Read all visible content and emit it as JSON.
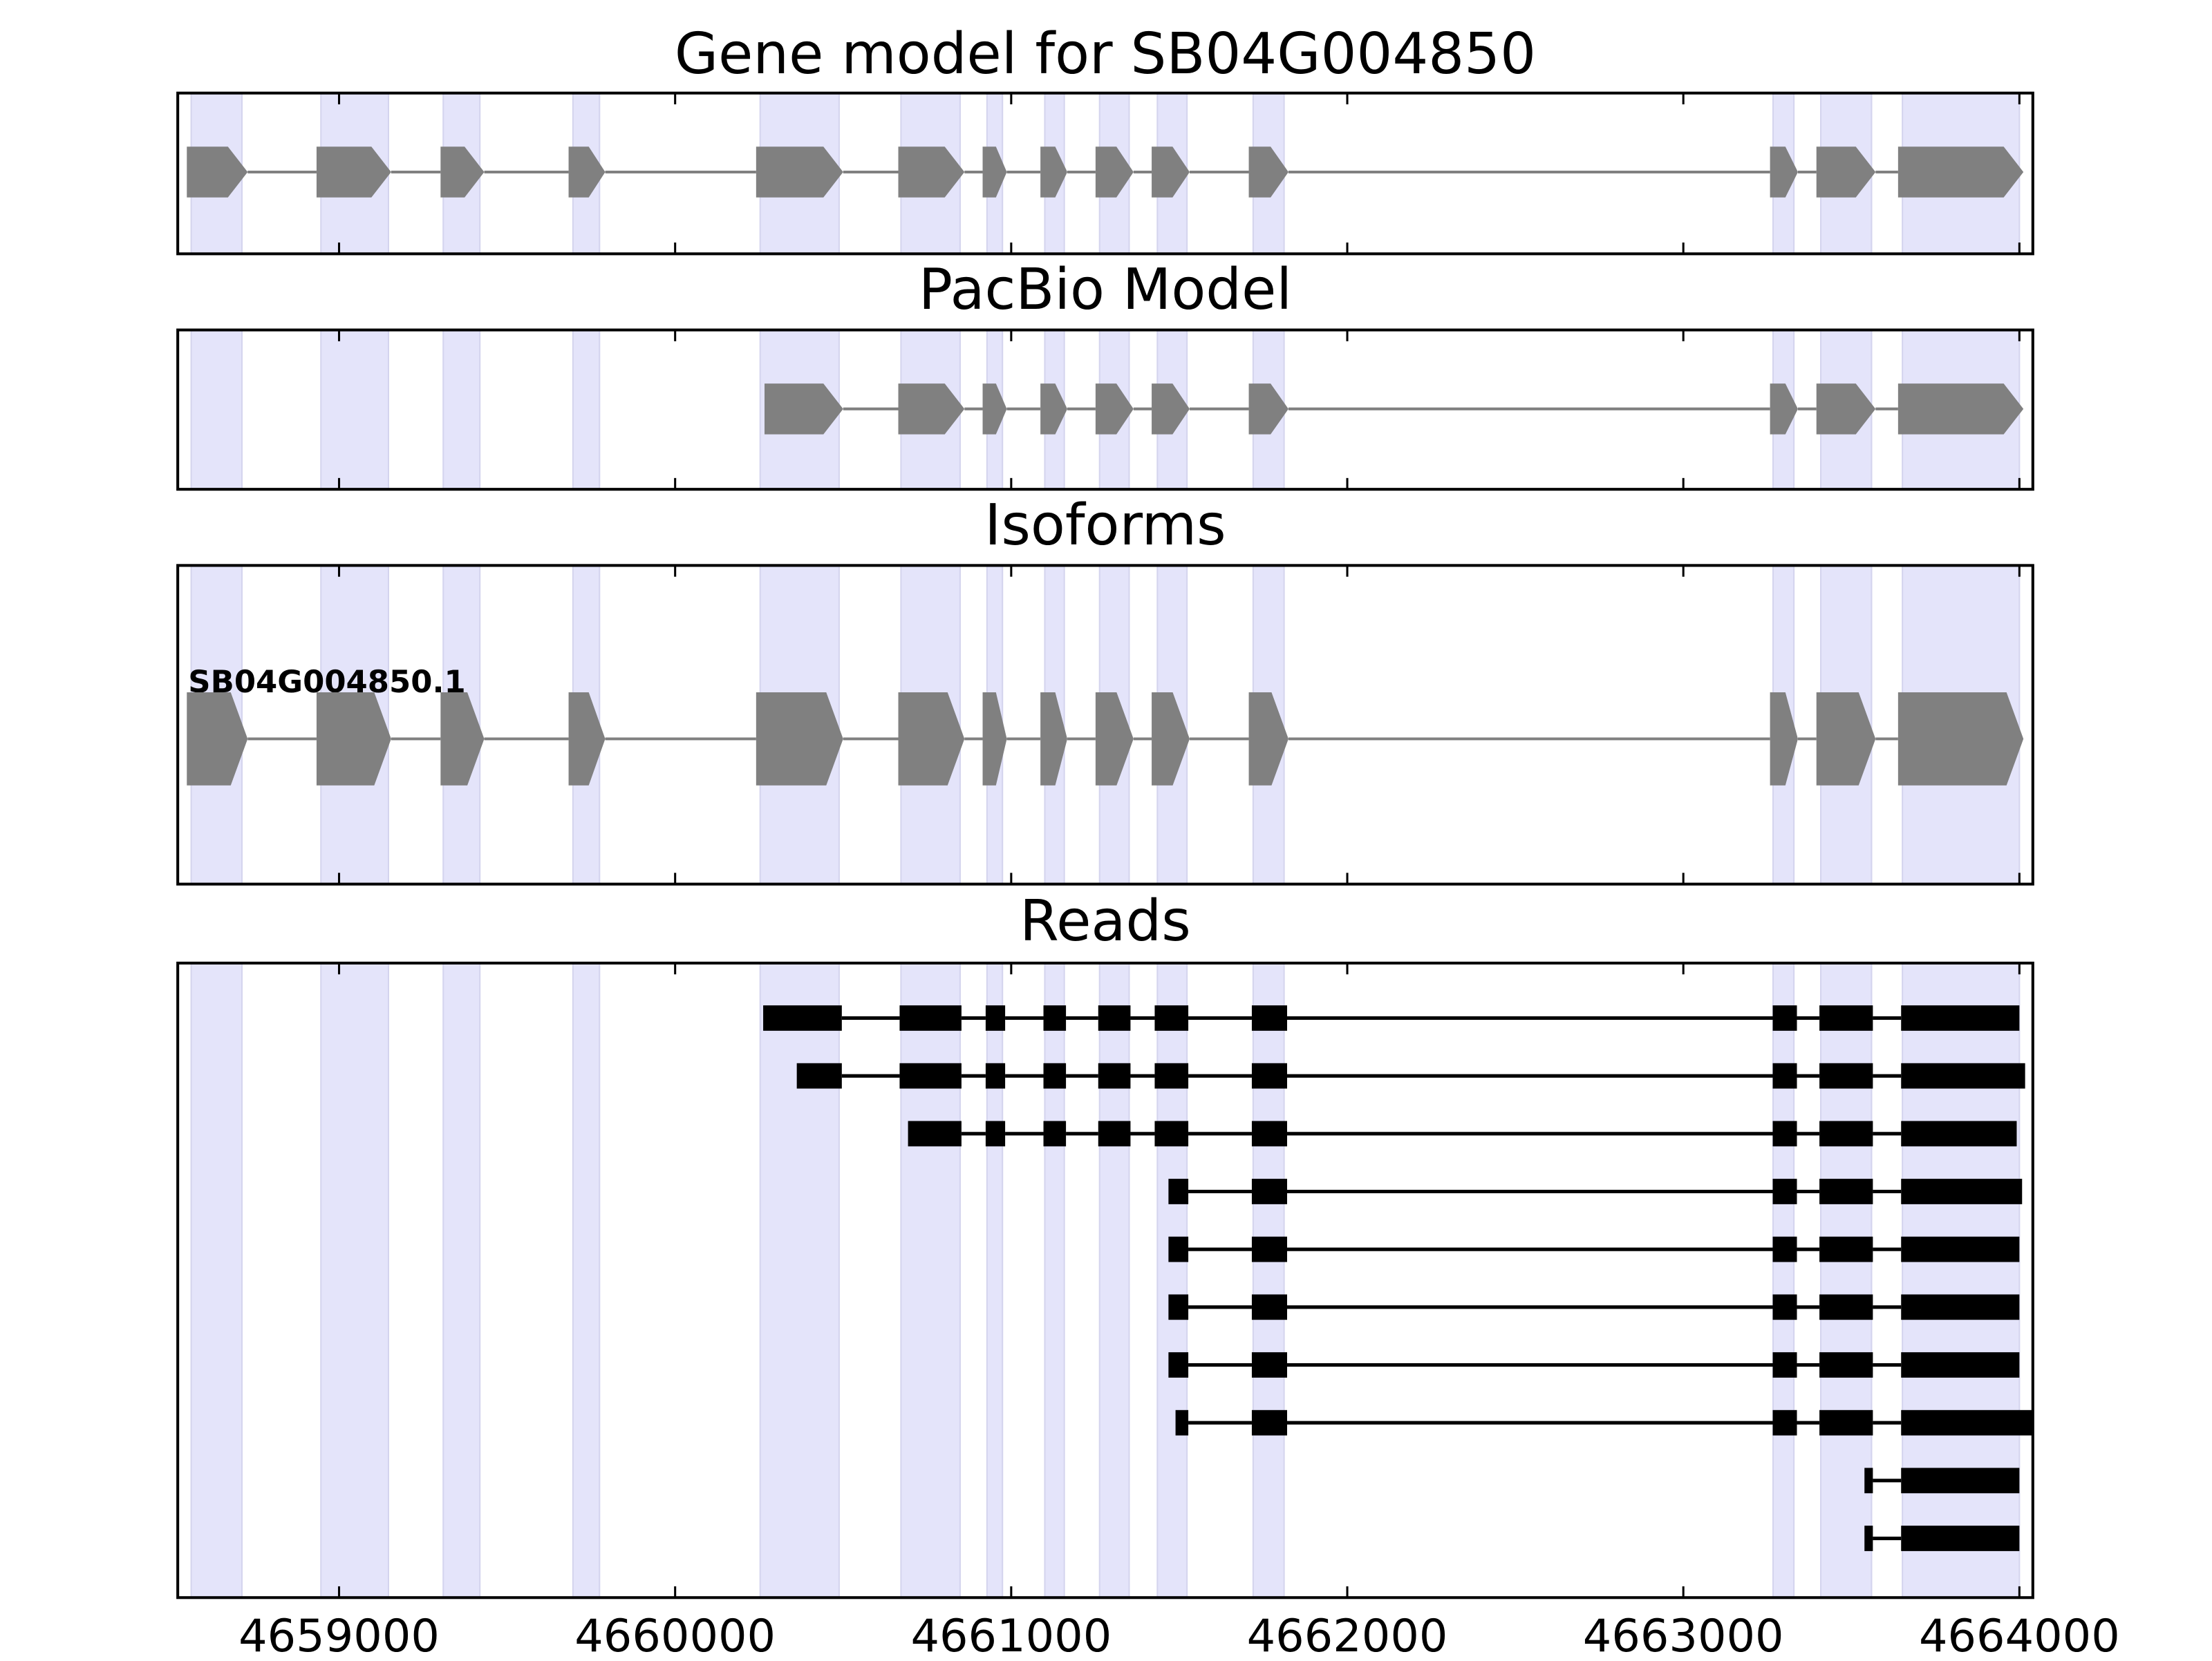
{
  "shared_x": {
    "xlim": [
      4658520,
      4664040
    ],
    "xticks": [
      4659000,
      4660000,
      4661000,
      4662000,
      4663000,
      4664000
    ],
    "highlight_color": "#e4e4fa",
    "highlight_regions": [
      [
        4658560,
        4658711
      ],
      [
        4658946,
        4659147
      ],
      [
        4659310,
        4659419
      ],
      [
        4659696,
        4659775
      ],
      [
        4660253,
        4660488
      ],
      [
        4660672,
        4660848
      ],
      [
        4660928,
        4660974
      ],
      [
        4661100,
        4661158
      ],
      [
        4661263,
        4661351
      ],
      [
        4661435,
        4661523
      ],
      [
        4661720,
        4661812
      ],
      [
        4663267,
        4663329
      ],
      [
        4663409,
        4663560
      ],
      [
        4663652,
        4664000
      ]
    ]
  },
  "chart_data": [
    {
      "type": "gene",
      "title": "Gene model for SB04G004850",
      "color": "#808080",
      "exons": [
        [
          4658547,
          4658728
        ],
        [
          4658933,
          4659155
        ],
        [
          4659302,
          4659432
        ],
        [
          4659683,
          4659792
        ],
        [
          4660241,
          4660500
        ],
        [
          4660664,
          4660861
        ],
        [
          4660915,
          4660987
        ],
        [
          4661087,
          4661167
        ],
        [
          4661251,
          4661364
        ],
        [
          4661418,
          4661531
        ],
        [
          4661707,
          4661825
        ],
        [
          4663258,
          4663341
        ],
        [
          4663396,
          4663572
        ],
        [
          4663639,
          4664012
        ]
      ]
    },
    {
      "type": "gene",
      "title": "PacBio Model",
      "color": "#808080",
      "exons": [
        [
          4660266,
          4660500
        ],
        [
          4660664,
          4660861
        ],
        [
          4660915,
          4660987
        ],
        [
          4661087,
          4661167
        ],
        [
          4661251,
          4661364
        ],
        [
          4661418,
          4661531
        ],
        [
          4661707,
          4661825
        ],
        [
          4663258,
          4663341
        ],
        [
          4663396,
          4663572
        ],
        [
          4663639,
          4664012
        ]
      ]
    },
    {
      "type": "isoforms",
      "title": "Isoforms",
      "color": "#808080",
      "isoforms": [
        {
          "name": "SB04G004850.1",
          "exons": [
            [
              4658547,
              4658728
            ],
            [
              4658933,
              4659155
            ],
            [
              4659302,
              4659432
            ],
            [
              4659683,
              4659792
            ],
            [
              4660241,
              4660500
            ],
            [
              4660664,
              4660861
            ],
            [
              4660915,
              4660987
            ],
            [
              4661087,
              4661167
            ],
            [
              4661251,
              4661364
            ],
            [
              4661418,
              4661531
            ],
            [
              4661707,
              4661825
            ],
            [
              4663258,
              4663341
            ],
            [
              4663396,
              4663572
            ],
            [
              4663639,
              4664012
            ]
          ]
        }
      ]
    },
    {
      "type": "reads",
      "title": "Reads",
      "color": "#000000",
      "reads": [
        {
          "exons": [
            [
              4660262,
              4660496
            ],
            [
              4660668,
              4660852
            ],
            [
              4660924,
              4660982
            ],
            [
              4661096,
              4661163
            ],
            [
              4661259,
              4661355
            ],
            [
              4661427,
              4661527
            ],
            [
              4661716,
              4661821
            ],
            [
              4663266,
              4663338
            ],
            [
              4663405,
              4663564
            ],
            [
              4663648,
              4664000
            ]
          ]
        },
        {
          "exons": [
            [
              4660362,
              4660496
            ],
            [
              4660668,
              4660852
            ],
            [
              4660924,
              4660982
            ],
            [
              4661096,
              4661163
            ],
            [
              4661259,
              4661355
            ],
            [
              4661427,
              4661527
            ],
            [
              4661716,
              4661821
            ],
            [
              4663266,
              4663338
            ],
            [
              4663405,
              4663564
            ],
            [
              4663648,
              4664017
            ]
          ]
        },
        {
          "exons": [
            [
              4660693,
              4660852
            ],
            [
              4660924,
              4660982
            ],
            [
              4661096,
              4661163
            ],
            [
              4661259,
              4661355
            ],
            [
              4661427,
              4661527
            ],
            [
              4661716,
              4661821
            ],
            [
              4663266,
              4663338
            ],
            [
              4663405,
              4663564
            ],
            [
              4663648,
              4663992
            ]
          ]
        },
        {
          "exons": [
            [
              4661468,
              4661527
            ],
            [
              4661716,
              4661821
            ],
            [
              4663266,
              4663338
            ],
            [
              4663405,
              4663564
            ],
            [
              4663648,
              4664008
            ]
          ]
        },
        {
          "exons": [
            [
              4661468,
              4661527
            ],
            [
              4661716,
              4661821
            ],
            [
              4663266,
              4663338
            ],
            [
              4663405,
              4663564
            ],
            [
              4663648,
              4664000
            ]
          ]
        },
        {
          "exons": [
            [
              4661468,
              4661527
            ],
            [
              4661716,
              4661821
            ],
            [
              4663266,
              4663338
            ],
            [
              4663405,
              4663564
            ],
            [
              4663648,
              4664000
            ]
          ]
        },
        {
          "exons": [
            [
              4661468,
              4661527
            ],
            [
              4661716,
              4661821
            ],
            [
              4663266,
              4663338
            ],
            [
              4663405,
              4663564
            ],
            [
              4663648,
              4664000
            ]
          ]
        },
        {
          "exons": [
            [
              4661489,
              4661527
            ],
            [
              4661716,
              4661821
            ],
            [
              4663266,
              4663338
            ],
            [
              4663405,
              4663564
            ],
            [
              4663648,
              4664038
            ]
          ]
        },
        {
          "exons": [
            [
              4663539,
              4663564
            ],
            [
              4663648,
              4664000
            ]
          ]
        },
        {
          "exons": [
            [
              4663539,
              4663564
            ],
            [
              4663648,
              4664000
            ]
          ]
        }
      ]
    }
  ]
}
